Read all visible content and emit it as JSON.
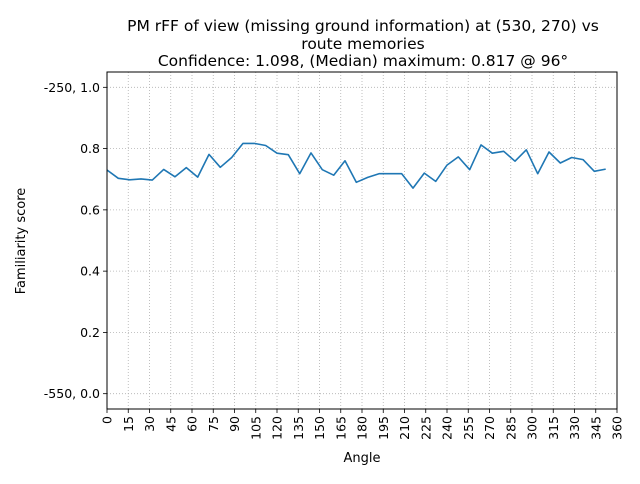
{
  "chart_data": {
    "type": "line",
    "title_lines": [
      "PM rFF of view (missing ground information) at (530, 270) vs",
      "route memories",
      "Confidence: 1.098, (Median) maximum: 0.817 @ 96°"
    ],
    "xlabel": "Angle",
    "ylabel": "Familiarity score",
    "xlim": [
      0,
      360
    ],
    "ylim": [
      -0.05,
      1.05
    ],
    "grid": true,
    "colors": {
      "line": "#1f77b4",
      "grid": "#b0b0b0"
    },
    "x_ticks": [
      0,
      15,
      30,
      45,
      60,
      75,
      90,
      105,
      120,
      135,
      150,
      165,
      180,
      195,
      210,
      225,
      240,
      255,
      270,
      285,
      300,
      315,
      330,
      345,
      360
    ],
    "y_ticks": [
      {
        "value": 0.0,
        "label": "-550, 0.0"
      },
      {
        "value": 0.2,
        "label": "0.2"
      },
      {
        "value": 0.4,
        "label": "0.4"
      },
      {
        "value": 0.6,
        "label": "0.6"
      },
      {
        "value": 0.8,
        "label": "0.8"
      },
      {
        "value": 1.0,
        "label": "-250, 1.0"
      }
    ],
    "series": [
      {
        "x": [
          0,
          8,
          16,
          24,
          32,
          40,
          48,
          56,
          64,
          72,
          80,
          88,
          96,
          104,
          112,
          120,
          128,
          136,
          144,
          152,
          160,
          168,
          176,
          184,
          192,
          200,
          208,
          216,
          224,
          232,
          240,
          248,
          256,
          264,
          272,
          280,
          288,
          296,
          304,
          312,
          320,
          328,
          336,
          344,
          352
        ],
        "y": [
          0.73,
          0.703,
          0.698,
          0.701,
          0.697,
          0.732,
          0.708,
          0.738,
          0.707,
          0.781,
          0.739,
          0.771,
          0.817,
          0.817,
          0.81,
          0.785,
          0.78,
          0.718,
          0.786,
          0.731,
          0.713,
          0.76,
          0.69,
          0.706,
          0.718,
          0.718,
          0.718,
          0.671,
          0.72,
          0.693,
          0.746,
          0.773,
          0.731,
          0.812,
          0.785,
          0.791,
          0.759,
          0.796,
          0.718,
          0.789,
          0.753,
          0.771,
          0.764,
          0.726,
          0.733
        ]
      }
    ]
  }
}
